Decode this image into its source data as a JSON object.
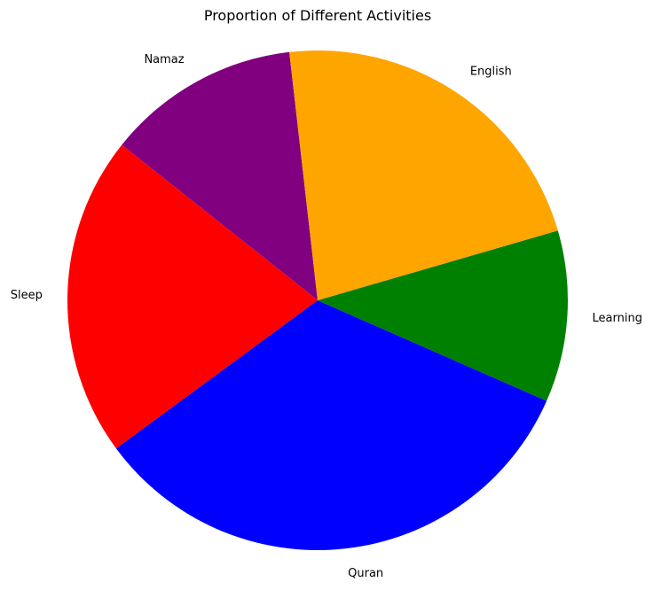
{
  "chart_data": {
    "type": "pie",
    "title": "Proportion of Different Activities",
    "start_angle_deg": 96.5,
    "direction": "counterclockwise",
    "slices": [
      {
        "label": "Namaz",
        "value": 12.5,
        "color": "#800080"
      },
      {
        "label": "Sleep",
        "value": 20.8,
        "color": "#ff0000"
      },
      {
        "label": "Quran",
        "value": 33.3,
        "color": "#0000ff"
      },
      {
        "label": "Learning",
        "value": 11.1,
        "color": "#008000"
      },
      {
        "label": "English",
        "value": 22.3,
        "color": "#ffa500"
      }
    ]
  }
}
